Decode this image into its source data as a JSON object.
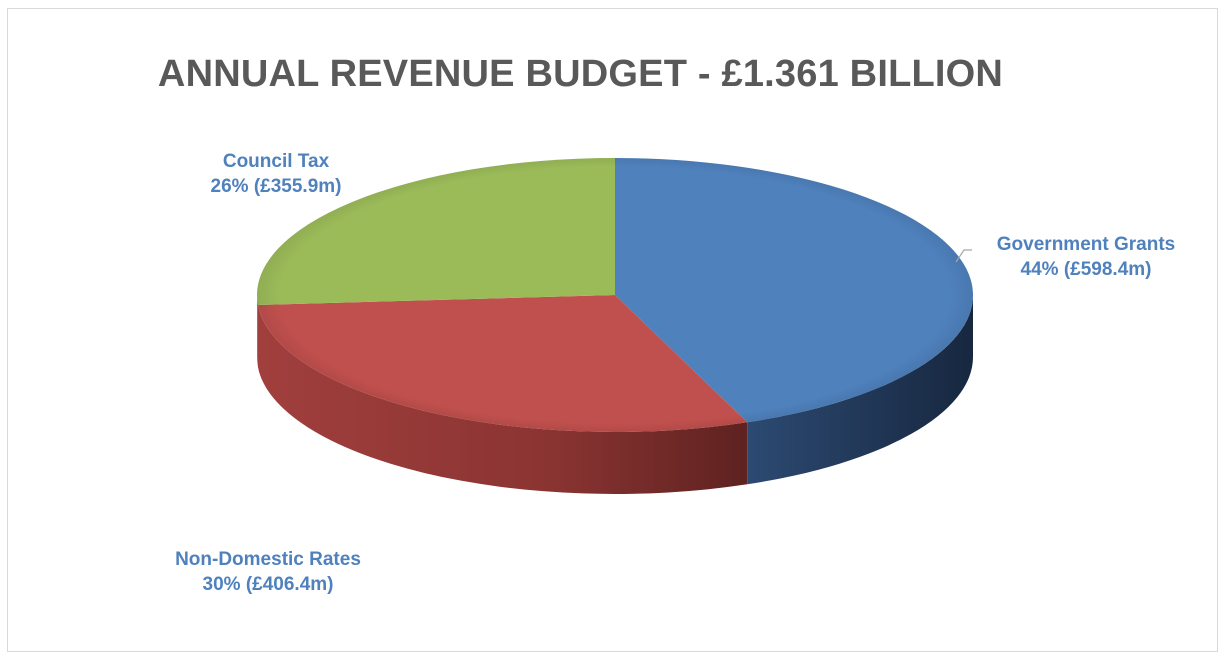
{
  "chart_data": {
    "type": "pie",
    "title": "ANNUAL REVENUE BUDGET - £1.361 BILLION",
    "categories": [
      "Government Grants",
      "Non-Domestic Rates",
      "Council Tax"
    ],
    "values": [
      598.4,
      406.4,
      355.9
    ],
    "percentages": [
      "44%",
      "30%",
      "26%"
    ],
    "data_labels": [
      {
        "name": "Government Grants",
        "value": "44% (£598.4m)"
      },
      {
        "name": "Non-Domestic Rates",
        "value": "30% (£406.4m)"
      },
      {
        "name": "Council Tax",
        "value": "26% (£355.9m)"
      }
    ],
    "colors": [
      "#4f81bd",
      "#c0504d",
      "#9bbb59"
    ],
    "label_color": "#4f81bd",
    "title_color": "#595959",
    "style": "3d-pie",
    "legend": "none"
  }
}
